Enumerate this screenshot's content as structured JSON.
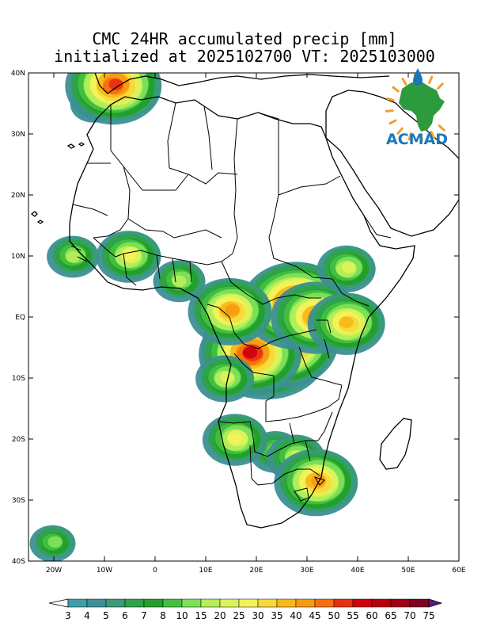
{
  "title": {
    "line1": "CMC 24HR accumulated precip [mm]",
    "line2": "initialized at 2025102700 VT: 2025103000"
  },
  "map": {
    "lat_range": [
      -40,
      40
    ],
    "lon_range": [
      -25,
      60
    ],
    "lat_ticks": [
      {
        "value": 40,
        "label": "40N"
      },
      {
        "value": 30,
        "label": "30N"
      },
      {
        "value": 20,
        "label": "20N"
      },
      {
        "value": 10,
        "label": "10N"
      },
      {
        "value": 0,
        "label": "EQ"
      },
      {
        "value": -10,
        "label": "10S"
      },
      {
        "value": -20,
        "label": "20S"
      },
      {
        "value": -30,
        "label": "30S"
      },
      {
        "value": -40,
        "label": "40S"
      }
    ],
    "lon_ticks": [
      {
        "value": -20,
        "label": "20W"
      },
      {
        "value": -10,
        "label": "10W"
      },
      {
        "value": 0,
        "label": "0"
      },
      {
        "value": 10,
        "label": "10E"
      },
      {
        "value": 20,
        "label": "20E"
      },
      {
        "value": 30,
        "label": "30E"
      },
      {
        "value": 40,
        "label": "40E"
      },
      {
        "value": 50,
        "label": "50E"
      },
      {
        "value": 60,
        "label": "60E"
      }
    ]
  },
  "colorbar": {
    "levels": [
      "3",
      "4",
      "5",
      "6",
      "7",
      "8",
      "10",
      "15",
      "20",
      "25",
      "30",
      "35",
      "40",
      "45",
      "50",
      "55",
      "60",
      "65",
      "70",
      "75"
    ],
    "colors": [
      "#3f9fa8",
      "#3c8f96",
      "#3a9a7a",
      "#2ea24a",
      "#22a02a",
      "#44c040",
      "#7ee05a",
      "#b4ee5a",
      "#dcf25a",
      "#f4f25a",
      "#f8d83a",
      "#f8b81a",
      "#f89a10",
      "#f47010",
      "#e83010",
      "#d00010",
      "#b80010",
      "#a00018",
      "#800020",
      "#680030",
      "#5a1a80"
    ]
  },
  "logo": {
    "text": "ACMAD",
    "text_color": "#1a78b8",
    "map_color": "#2e9a3e",
    "ray_color": "#f0a030"
  },
  "precip_areas": [
    {
      "lon": -12,
      "lat": 35,
      "mm": 8
    },
    {
      "lon": -8,
      "lat": 38,
      "mm": 45
    },
    {
      "lon": -5,
      "lat": 10,
      "mm": 20
    },
    {
      "lon": -16,
      "lat": 10,
      "mm": 10
    },
    {
      "lon": 22,
      "lat": -5,
      "mm": 70
    },
    {
      "lon": 25,
      "lat": -4,
      "mm": 60
    },
    {
      "lon": 19,
      "lat": -6,
      "mm": 50
    },
    {
      "lon": 28,
      "lat": 2,
      "mm": 55
    },
    {
      "lon": 32,
      "lat": 0,
      "mm": 40
    },
    {
      "lon": 38,
      "lat": -1,
      "mm": 30
    },
    {
      "lon": 15,
      "lat": 1,
      "mm": 35
    },
    {
      "lon": 24,
      "lat": -22,
      "mm": 10
    },
    {
      "lon": 28,
      "lat": -23,
      "mm": 15
    },
    {
      "lon": 32,
      "lat": -27,
      "mm": 35
    },
    {
      "lon": 16,
      "lat": -20,
      "mm": 20
    },
    {
      "lon": 14,
      "lat": -10,
      "mm": 15
    },
    {
      "lon": -20,
      "lat": -37,
      "mm": 8
    },
    {
      "lon": 38,
      "lat": 8,
      "mm": 15
    },
    {
      "lon": 5,
      "lat": 6,
      "mm": 10
    }
  ]
}
